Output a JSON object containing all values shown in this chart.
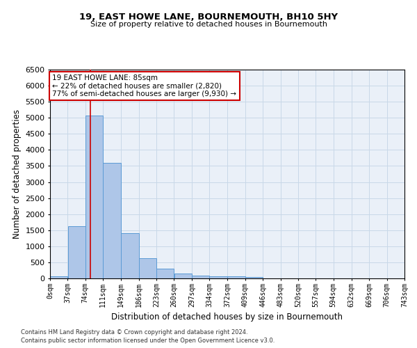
{
  "title1": "19, EAST HOWE LANE, BOURNEMOUTH, BH10 5HY",
  "title2": "Size of property relative to detached houses in Bournemouth",
  "xlabel": "Distribution of detached houses by size in Bournemouth",
  "ylabel": "Number of detached properties",
  "footnote1": "Contains HM Land Registry data © Crown copyright and database right 2024.",
  "footnote2": "Contains public sector information licensed under the Open Government Licence v3.0.",
  "bar_edges": [
    0,
    37,
    74,
    111,
    149,
    186,
    223,
    260,
    297,
    334,
    372,
    409,
    446,
    483,
    520,
    557,
    594,
    632,
    669,
    706,
    743
  ],
  "bar_heights": [
    75,
    1625,
    5075,
    3600,
    1400,
    620,
    300,
    155,
    90,
    55,
    65,
    50,
    0,
    0,
    0,
    0,
    0,
    0,
    0,
    0
  ],
  "bar_color": "#aec6e8",
  "bar_edge_color": "#5b9bd5",
  "property_size": 85,
  "property_line_color": "#cc0000",
  "annotation_text": "19 EAST HOWE LANE: 85sqm\n← 22% of detached houses are smaller (2,820)\n77% of semi-detached houses are larger (9,930) →",
  "annotation_box_color": "#ffffff",
  "annotation_box_edge": "#cc0000",
  "ylim": [
    0,
    6500
  ],
  "yticks": [
    0,
    500,
    1000,
    1500,
    2000,
    2500,
    3000,
    3500,
    4000,
    4500,
    5000,
    5500,
    6000,
    6500
  ],
  "tick_labels": [
    "0sqm",
    "37sqm",
    "74sqm",
    "111sqm",
    "149sqm",
    "186sqm",
    "223sqm",
    "260sqm",
    "297sqm",
    "334sqm",
    "372sqm",
    "409sqm",
    "446sqm",
    "483sqm",
    "520sqm",
    "557sqm",
    "594sqm",
    "632sqm",
    "669sqm",
    "706sqm",
    "743sqm"
  ],
  "grid_color": "#c8d8e8",
  "background_color": "#eaf0f8"
}
